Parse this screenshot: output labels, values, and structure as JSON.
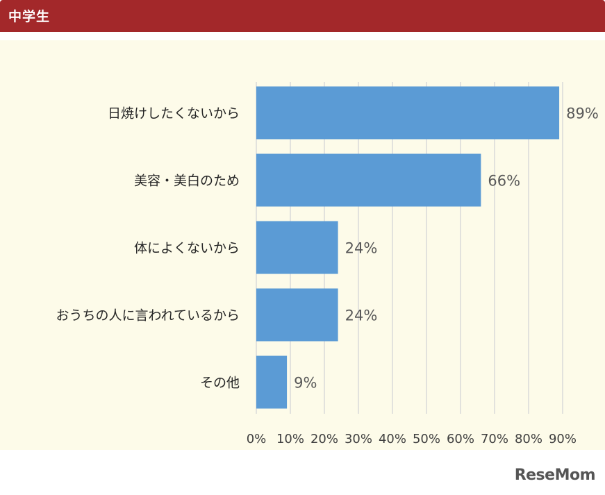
{
  "header": {
    "title": "中学生"
  },
  "brand": {
    "logo_text": "ReseMom"
  },
  "colors": {
    "bar": "#5b9bd5",
    "header_bg": "#a3282a",
    "plot_bg": "#fdfbe9"
  },
  "chart_data": {
    "type": "bar",
    "orientation": "horizontal",
    "categories": [
      "日焼けしたくないから",
      "美容・美白のため",
      "体によくないから",
      "おうちの人に言われているから",
      "その他"
    ],
    "values": [
      89,
      66,
      24,
      24,
      9
    ],
    "value_labels": [
      "89%",
      "66%",
      "24%",
      "24%",
      "9%"
    ],
    "xlim": [
      0,
      90
    ],
    "xticks": [
      "0%",
      "10%",
      "20%",
      "30%",
      "40%",
      "50%",
      "60%",
      "70%",
      "80%",
      "90%"
    ],
    "grid": true
  }
}
